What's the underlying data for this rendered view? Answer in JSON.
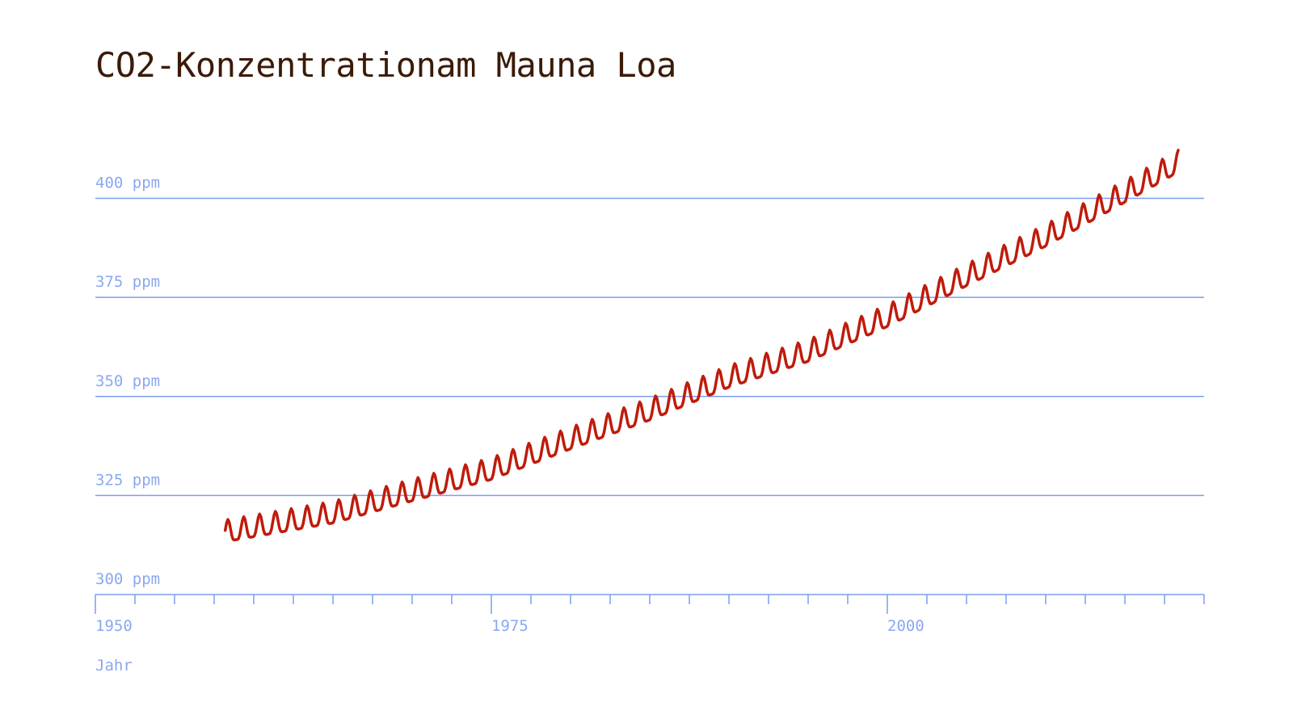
{
  "colors": {
    "title": "#3b1a08",
    "axis": "#7b9ef0",
    "axis_label": "#8aa8f0",
    "line": "#bf1b0b",
    "background": "#ffffff"
  },
  "chart_data": {
    "type": "line",
    "title": "CO2-Konzentrationam Mauna Loa",
    "xlabel": "Jahr",
    "ylabel": "",
    "xlim": [
      1950,
      2019.7
    ],
    "ylim": [
      300,
      410
    ],
    "grid": true,
    "y_ticks": [
      300,
      325,
      350,
      375,
      400
    ],
    "y_tick_labels": [
      "300 ppm",
      "325 ppm",
      "350 ppm",
      "375 ppm",
      "400 ppm"
    ],
    "x_major_ticks": [
      1950,
      1975,
      2000
    ],
    "x_tick_labels": [
      "1950",
      "1975",
      "2000"
    ],
    "x_minor_step": 2.5,
    "series": [
      {
        "name": "",
        "x_start": 1958.2,
        "x_end": 2018.4,
        "x_step": 0.0833333,
        "trend_x": [
          1958.2,
          1965,
          1970,
          1975,
          1980,
          1985,
          1990,
          1995,
          2000,
          2005,
          2010,
          2015,
          2018.4
        ],
        "trend_y": [
          315.3,
          320.0,
          325.6,
          331.0,
          338.7,
          346.0,
          354.3,
          360.8,
          369.6,
          379.9,
          389.9,
          401.0,
          408.7
        ],
        "seasonal_amplitude": 3.2
      }
    ]
  }
}
